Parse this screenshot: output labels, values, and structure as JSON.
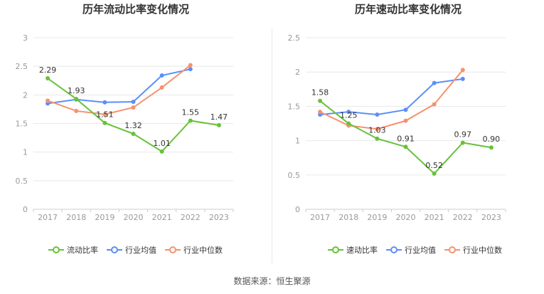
{
  "source_text": "数据来源：恒生聚源",
  "colors": {
    "company": "#67c23a",
    "avg": "#5b8ff9",
    "median": "#f5926d",
    "axis": "#999999",
    "grid": "#e8e8e8",
    "label": "#333333"
  },
  "charts": [
    {
      "title": "历年流动比率变化情况",
      "legend": [
        "流动比率",
        "行业均值",
        "行业中位数"
      ],
      "chart_data": {
        "type": "line",
        "title": "历年流动比率变化情况",
        "categories": [
          "2017",
          "2018",
          "2019",
          "2020",
          "2021",
          "2022",
          "2023"
        ],
        "ylim": [
          0,
          3
        ],
        "yticks": [
          "0",
          "0.5",
          "1",
          "1.5",
          "2",
          "2.5",
          "3"
        ],
        "yticks_values": [
          0,
          0.5,
          1,
          1.5,
          2,
          2.5,
          3
        ],
        "grid": true,
        "legend_position": "bottom",
        "series": [
          {
            "name": "流动比率",
            "key": "company",
            "values": [
              2.29,
              1.93,
              1.51,
              1.32,
              1.01,
              1.55,
              1.47
            ],
            "labels": [
              "2.29",
              "1.93",
              "1.51",
              "1.32",
              "1.01",
              "1.55",
              "1.47"
            ]
          },
          {
            "name": "行业均值",
            "key": "avg",
            "values": [
              1.85,
              1.92,
              1.87,
              1.88,
              2.34,
              2.45,
              null
            ]
          },
          {
            "name": "行业中位数",
            "key": "median",
            "values": [
              1.9,
              1.72,
              1.66,
              1.78,
              2.13,
              2.52,
              null
            ]
          }
        ]
      }
    },
    {
      "title": "历年速动比率变化情况",
      "legend": [
        "速动比率",
        "行业均值",
        "行业中位数"
      ],
      "chart_data": {
        "type": "line",
        "title": "历年速动比率变化情况",
        "categories": [
          "2017",
          "2018",
          "2019",
          "2020",
          "2021",
          "2022",
          "2023"
        ],
        "ylim": [
          0,
          2.5
        ],
        "yticks": [
          "0",
          "0.5",
          "1",
          "1.5",
          "2",
          "2.5"
        ],
        "yticks_values": [
          0,
          0.5,
          1,
          1.5,
          2,
          2.5
        ],
        "grid": true,
        "legend_position": "bottom",
        "series": [
          {
            "name": "速动比率",
            "key": "company",
            "values": [
              1.58,
              1.25,
              1.03,
              0.91,
              0.52,
              0.97,
              0.9
            ],
            "labels": [
              "1.58",
              "1.25",
              "1.03",
              "0.91",
              "0.52",
              "0.97",
              "0.90"
            ]
          },
          {
            "name": "行业均值",
            "key": "avg",
            "values": [
              1.38,
              1.42,
              1.38,
              1.45,
              1.84,
              1.9,
              null
            ]
          },
          {
            "name": "行业中位数",
            "key": "median",
            "values": [
              1.42,
              1.22,
              1.17,
              1.29,
              1.53,
              2.03,
              null
            ]
          }
        ]
      }
    }
  ]
}
